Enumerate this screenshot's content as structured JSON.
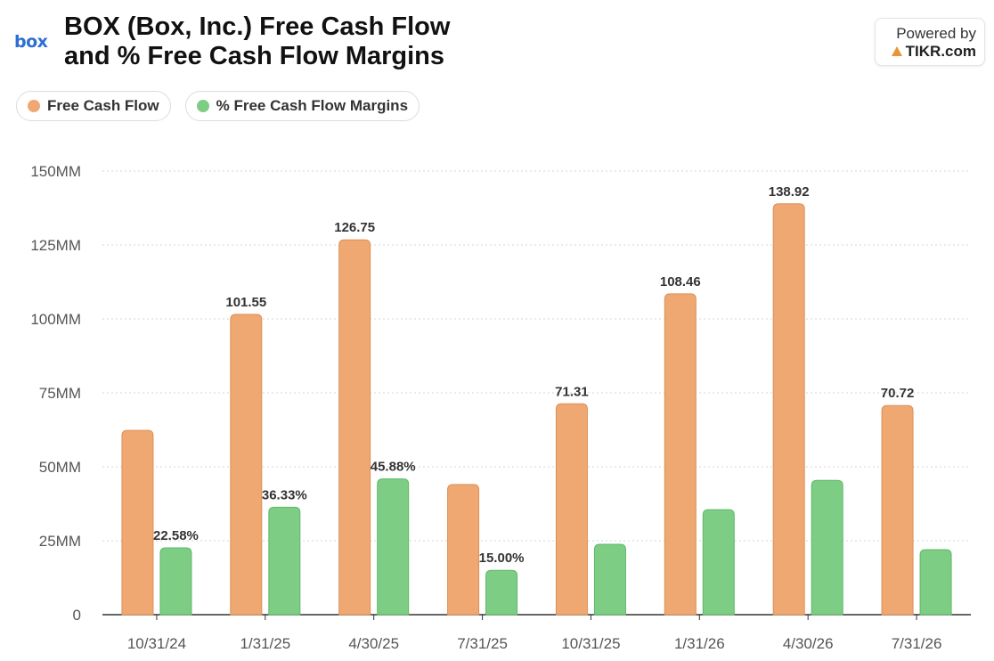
{
  "header": {
    "logo_text": "box",
    "title_line1": "BOX (Box, Inc.) Free Cash Flow",
    "title_line2": "and % Free Cash Flow Margins"
  },
  "branding": {
    "powered_by": "Powered by",
    "tikr": "TIKR.com"
  },
  "legend": [
    {
      "label": "Free Cash Flow",
      "color": "#f0a872"
    },
    {
      "label": "% Free Cash Flow Margins",
      "color": "#7dcd85"
    }
  ],
  "chart_data": {
    "type": "bar",
    "title": "BOX (Box, Inc.) Free Cash Flow and % Free Cash Flow Margins",
    "categories": [
      "10/31/24",
      "1/31/25",
      "4/30/25",
      "7/31/25",
      "10/31/25",
      "1/31/26",
      "4/30/26",
      "7/31/26"
    ],
    "y_ticks": [
      "0",
      "25MM",
      "50MM",
      "75MM",
      "100MM",
      "125MM",
      "150MM"
    ],
    "ylim": [
      0,
      150
    ],
    "grid": true,
    "series": [
      {
        "name": "Free Cash Flow",
        "color": "#f0a872",
        "values": [
          62.3,
          101.55,
          126.75,
          44.0,
          71.31,
          108.46,
          138.92,
          70.72
        ],
        "labels": [
          "",
          "101.55",
          "126.75",
          "",
          "71.31",
          "108.46",
          "138.92",
          "70.72"
        ]
      },
      {
        "name": "% Free Cash Flow Margins",
        "color": "#7dcd85",
        "values": [
          22.58,
          36.33,
          45.88,
          15.0,
          23.8,
          35.5,
          45.4,
          22.0
        ],
        "labels": [
          "22.58%",
          "36.33%",
          "45.88%",
          "15.00%",
          "",
          "",
          "",
          ""
        ]
      }
    ]
  }
}
